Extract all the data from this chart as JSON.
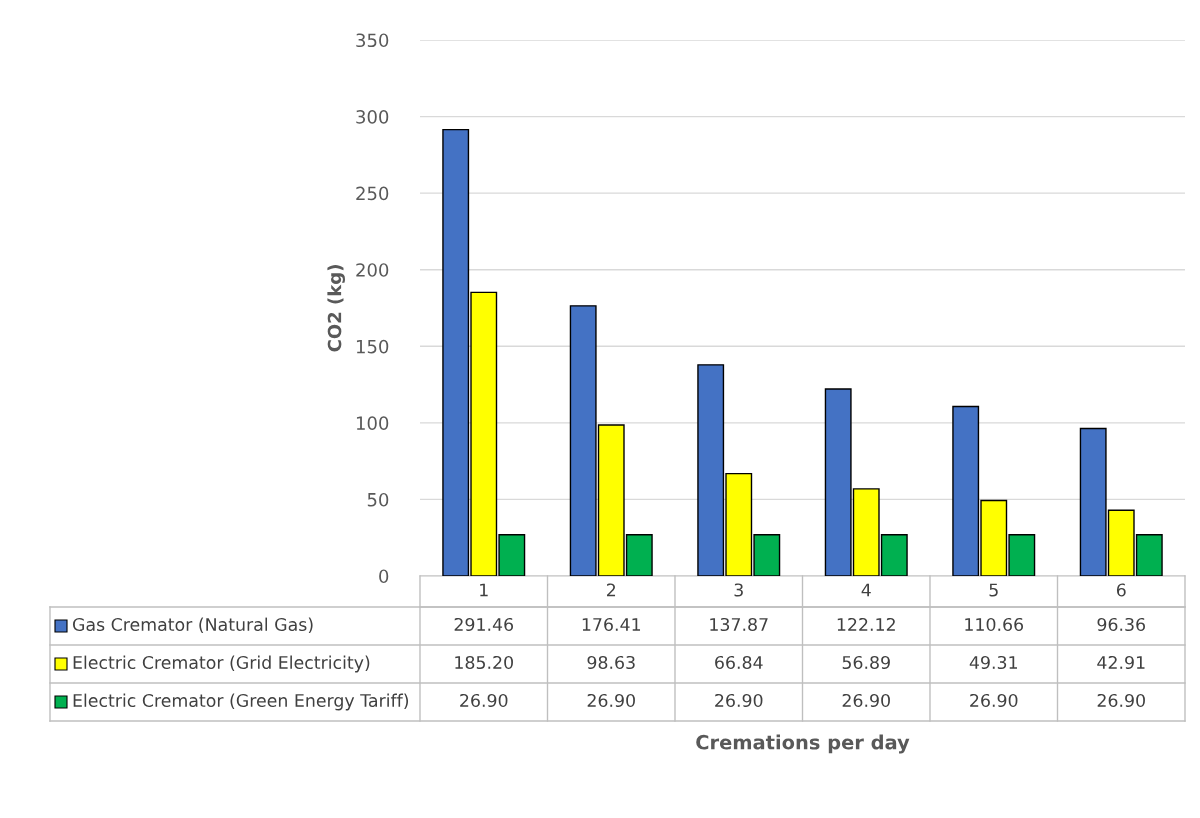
{
  "chart_data": {
    "type": "bar",
    "annotations": [
      "Cremations per day"
    ],
    "ylabel": "CO2 (kg)",
    "categories": [
      "1",
      "2",
      "3",
      "4",
      "5",
      "6"
    ],
    "ylim": [
      0,
      350
    ],
    "yticks": [
      0,
      50,
      100,
      150,
      200,
      250,
      300,
      350
    ],
    "grid": "y",
    "legend": "bottom",
    "series": [
      {
        "name": "Gas Cremator (Natural Gas)",
        "color": "#4472c4",
        "values": [
          291.46,
          176.41,
          137.87,
          122.12,
          110.66,
          96.36
        ],
        "value_labels": [
          "291.46",
          "176.41",
          "137.87",
          "122.12",
          "110.66",
          "96.36"
        ]
      },
      {
        "name": "Electric Cremator (Grid Electricity)",
        "color": "#ffff00",
        "values": [
          185.2,
          98.63,
          66.84,
          56.89,
          49.31,
          42.91
        ],
        "value_labels": [
          "185.20",
          "98.63",
          "66.84",
          "56.89",
          "49.31",
          "42.91"
        ]
      },
      {
        "name": "Electric Cremator (Green Energy Tariff)",
        "color": "#00b050",
        "values": [
          26.9,
          26.9,
          26.9,
          26.9,
          26.9,
          26.9
        ],
        "value_labels": [
          "26.90",
          "26.90",
          "26.90",
          "26.90",
          "26.90",
          "26.90"
        ]
      }
    ]
  }
}
